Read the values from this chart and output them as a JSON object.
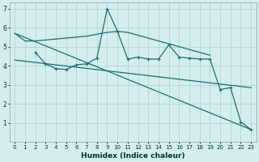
{
  "xlabel": "Humidex (Indice chaleur)",
  "background_color": "#d4eeee",
  "grid_color": "#b8d8d8",
  "line_color": "#1a7070",
  "xlim": [
    -0.5,
    23.5
  ],
  "ylim": [
    0,
    7.3
  ],
  "xticks": [
    0,
    1,
    2,
    3,
    4,
    5,
    6,
    7,
    8,
    9,
    10,
    11,
    12,
    13,
    14,
    15,
    16,
    17,
    18,
    19,
    20,
    21,
    22,
    23
  ],
  "yticks": [
    1,
    2,
    3,
    4,
    5,
    6,
    7
  ],
  "smooth_top": {
    "x": [
      0,
      1,
      2,
      3,
      4,
      5,
      6,
      7,
      8,
      9,
      10,
      11,
      12,
      13,
      14,
      15,
      16,
      17,
      18,
      19
    ],
    "y": [
      5.7,
      5.3,
      5.3,
      5.35,
      5.4,
      5.45,
      5.5,
      5.55,
      5.65,
      5.75,
      5.8,
      5.75,
      5.6,
      5.45,
      5.3,
      5.15,
      5.0,
      4.85,
      4.7,
      4.55
    ]
  },
  "wavy_markers": {
    "x": [
      2,
      3,
      4,
      5,
      6,
      7,
      8,
      9,
      10,
      11,
      12,
      13,
      14,
      15,
      16,
      17,
      18,
      19,
      20,
      21,
      22,
      23
    ],
    "y": [
      4.7,
      4.1,
      3.85,
      3.8,
      4.05,
      4.1,
      4.4,
      7.0,
      5.8,
      4.35,
      4.45,
      4.35,
      4.35,
      5.1,
      4.45,
      4.4,
      4.35,
      4.35,
      2.75,
      2.85,
      1.05,
      0.65
    ]
  },
  "short_markers": {
    "x": [
      2,
      3,
      4,
      5,
      6,
      7,
      8
    ],
    "y": [
      4.7,
      4.1,
      3.85,
      3.8,
      4.05,
      4.1,
      4.4
    ]
  },
  "diag_steep": {
    "x": [
      0,
      23
    ],
    "y": [
      5.7,
      0.65
    ]
  },
  "diag_gentle": {
    "x": [
      0,
      23
    ],
    "y": [
      4.3,
      2.85
    ]
  }
}
